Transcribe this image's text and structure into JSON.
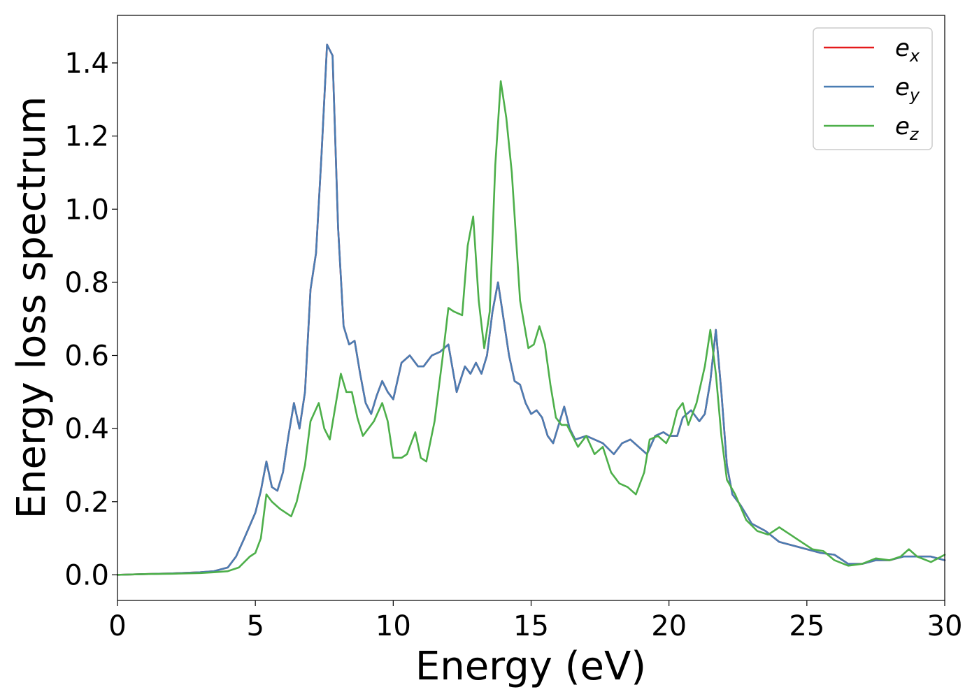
{
  "chart_data": {
    "type": "line",
    "xlabel": "Energy (eV)",
    "ylabel": "Energy loss spectrum",
    "xlim": [
      0,
      30
    ],
    "ylim": [
      -0.07,
      1.53
    ],
    "xticks": [
      0,
      5,
      10,
      15,
      20,
      25,
      30
    ],
    "xtick_labels": [
      "0",
      "5",
      "10",
      "15",
      "20",
      "25",
      "30"
    ],
    "yticks": [
      0.0,
      0.2,
      0.4,
      0.6,
      0.8,
      1.0,
      1.2,
      1.4
    ],
    "ytick_labels": [
      "0.0",
      "0.2",
      "0.4",
      "0.6",
      "0.8",
      "1.0",
      "1.2",
      "1.4"
    ],
    "grid": false,
    "legend_position": "top-right",
    "series": [
      {
        "name": "e_x",
        "legend_base": "e",
        "legend_sub": "x",
        "color": "#e41a1c",
        "x": [
          0,
          1,
          2,
          3,
          3.5,
          4,
          4.3,
          4.6,
          5.0,
          5.2,
          5.4,
          5.6,
          5.8,
          6.0,
          6.2,
          6.4,
          6.6,
          6.8,
          7.0,
          7.2,
          7.4,
          7.6,
          7.8,
          8.0,
          8.2,
          8.4,
          8.6,
          8.8,
          9.0,
          9.2,
          9.4,
          9.6,
          9.8,
          10.0,
          10.3,
          10.6,
          10.9,
          11.1,
          11.4,
          11.7,
          12.0,
          12.3,
          12.6,
          12.8,
          13.0,
          13.2,
          13.4,
          13.6,
          13.8,
          14.0,
          14.2,
          14.4,
          14.6,
          14.8,
          15.0,
          15.2,
          15.4,
          15.6,
          15.8,
          16.0,
          16.2,
          16.4,
          16.6,
          17.0,
          17.3,
          17.6,
          18.0,
          18.3,
          18.6,
          18.9,
          19.2,
          19.5,
          19.8,
          20.0,
          20.3,
          20.5,
          20.8,
          21.1,
          21.3,
          21.5,
          21.7,
          21.9,
          22.1,
          22.3,
          22.6,
          23.0,
          23.5,
          24.0,
          24.5,
          25.0,
          25.5,
          26.0,
          26.5,
          27.0,
          27.5,
          28.0,
          28.5,
          29.0,
          29.5,
          30
        ],
        "y": [
          0.0,
          0.002,
          0.004,
          0.007,
          0.01,
          0.02,
          0.05,
          0.1,
          0.17,
          0.23,
          0.31,
          0.24,
          0.23,
          0.28,
          0.38,
          0.47,
          0.4,
          0.5,
          0.78,
          0.88,
          1.15,
          1.45,
          1.42,
          0.95,
          0.68,
          0.63,
          0.64,
          0.55,
          0.47,
          0.44,
          0.49,
          0.53,
          0.5,
          0.48,
          0.58,
          0.6,
          0.57,
          0.57,
          0.6,
          0.61,
          0.63,
          0.5,
          0.57,
          0.55,
          0.58,
          0.55,
          0.6,
          0.72,
          0.8,
          0.7,
          0.6,
          0.53,
          0.52,
          0.47,
          0.44,
          0.45,
          0.43,
          0.38,
          0.36,
          0.41,
          0.46,
          0.4,
          0.37,
          0.38,
          0.37,
          0.36,
          0.33,
          0.36,
          0.37,
          0.35,
          0.33,
          0.38,
          0.39,
          0.38,
          0.38,
          0.43,
          0.45,
          0.42,
          0.44,
          0.53,
          0.67,
          0.5,
          0.3,
          0.22,
          0.19,
          0.14,
          0.12,
          0.09,
          0.08,
          0.07,
          0.06,
          0.055,
          0.03,
          0.03,
          0.04,
          0.04,
          0.05,
          0.05,
          0.05,
          0.04
        ]
      },
      {
        "name": "e_y",
        "legend_base": "e",
        "legend_sub": "y",
        "color": "#4a7db3",
        "x": [
          0,
          1,
          2,
          3,
          3.5,
          4,
          4.3,
          4.6,
          5.0,
          5.2,
          5.4,
          5.6,
          5.8,
          6.0,
          6.2,
          6.4,
          6.6,
          6.8,
          7.0,
          7.2,
          7.4,
          7.6,
          7.8,
          8.0,
          8.2,
          8.4,
          8.6,
          8.8,
          9.0,
          9.2,
          9.4,
          9.6,
          9.8,
          10.0,
          10.3,
          10.6,
          10.9,
          11.1,
          11.4,
          11.7,
          12.0,
          12.3,
          12.6,
          12.8,
          13.0,
          13.2,
          13.4,
          13.6,
          13.8,
          14.0,
          14.2,
          14.4,
          14.6,
          14.8,
          15.0,
          15.2,
          15.4,
          15.6,
          15.8,
          16.0,
          16.2,
          16.4,
          16.6,
          17.0,
          17.3,
          17.6,
          18.0,
          18.3,
          18.6,
          18.9,
          19.2,
          19.5,
          19.8,
          20.0,
          20.3,
          20.5,
          20.8,
          21.1,
          21.3,
          21.5,
          21.7,
          21.9,
          22.1,
          22.3,
          22.6,
          23.0,
          23.5,
          24.0,
          24.5,
          25.0,
          25.5,
          26.0,
          26.5,
          27.0,
          27.5,
          28.0,
          28.5,
          29.0,
          29.5,
          30
        ],
        "y": [
          0.0,
          0.002,
          0.004,
          0.007,
          0.01,
          0.02,
          0.05,
          0.1,
          0.17,
          0.23,
          0.31,
          0.24,
          0.23,
          0.28,
          0.38,
          0.47,
          0.4,
          0.5,
          0.78,
          0.88,
          1.15,
          1.45,
          1.42,
          0.95,
          0.68,
          0.63,
          0.64,
          0.55,
          0.47,
          0.44,
          0.49,
          0.53,
          0.5,
          0.48,
          0.58,
          0.6,
          0.57,
          0.57,
          0.6,
          0.61,
          0.63,
          0.5,
          0.57,
          0.55,
          0.58,
          0.55,
          0.6,
          0.72,
          0.8,
          0.7,
          0.6,
          0.53,
          0.52,
          0.47,
          0.44,
          0.45,
          0.43,
          0.38,
          0.36,
          0.41,
          0.46,
          0.4,
          0.37,
          0.38,
          0.37,
          0.36,
          0.33,
          0.36,
          0.37,
          0.35,
          0.33,
          0.38,
          0.39,
          0.38,
          0.38,
          0.43,
          0.45,
          0.42,
          0.44,
          0.53,
          0.67,
          0.5,
          0.3,
          0.22,
          0.19,
          0.14,
          0.12,
          0.09,
          0.08,
          0.07,
          0.06,
          0.055,
          0.03,
          0.03,
          0.04,
          0.04,
          0.05,
          0.05,
          0.05,
          0.04
        ]
      },
      {
        "name": "e_z",
        "legend_base": "e",
        "legend_sub": "z",
        "color": "#4daf4a",
        "x": [
          0,
          1,
          2,
          3,
          3.5,
          4,
          4.4,
          4.8,
          5.0,
          5.2,
          5.4,
          5.6,
          5.9,
          6.1,
          6.3,
          6.5,
          6.8,
          7.0,
          7.3,
          7.5,
          7.7,
          7.9,
          8.1,
          8.3,
          8.5,
          8.7,
          8.9,
          9.1,
          9.3,
          9.6,
          9.8,
          10.0,
          10.3,
          10.5,
          10.8,
          11.0,
          11.2,
          11.5,
          11.8,
          12.0,
          12.2,
          12.5,
          12.7,
          12.9,
          13.1,
          13.3,
          13.5,
          13.7,
          13.9,
          14.1,
          14.3,
          14.6,
          14.9,
          15.1,
          15.3,
          15.5,
          15.7,
          15.9,
          16.1,
          16.3,
          16.5,
          16.7,
          17.0,
          17.3,
          17.6,
          17.9,
          18.2,
          18.5,
          18.8,
          19.1,
          19.3,
          19.6,
          19.9,
          20.1,
          20.3,
          20.5,
          20.7,
          21.0,
          21.3,
          21.5,
          21.7,
          21.9,
          22.1,
          22.4,
          22.8,
          23.2,
          23.6,
          24.0,
          24.4,
          24.8,
          25.2,
          25.6,
          26.0,
          26.5,
          27.0,
          27.5,
          28.0,
          28.4,
          28.7,
          29.0,
          29.5,
          30
        ],
        "y": [
          0.0,
          0.002,
          0.003,
          0.005,
          0.007,
          0.01,
          0.02,
          0.05,
          0.06,
          0.1,
          0.22,
          0.2,
          0.18,
          0.17,
          0.16,
          0.2,
          0.3,
          0.42,
          0.47,
          0.4,
          0.37,
          0.46,
          0.55,
          0.5,
          0.5,
          0.43,
          0.38,
          0.4,
          0.42,
          0.47,
          0.42,
          0.32,
          0.32,
          0.33,
          0.39,
          0.32,
          0.31,
          0.42,
          0.6,
          0.73,
          0.72,
          0.71,
          0.9,
          0.98,
          0.75,
          0.62,
          0.72,
          1.12,
          1.35,
          1.25,
          1.1,
          0.75,
          0.62,
          0.63,
          0.68,
          0.63,
          0.52,
          0.43,
          0.41,
          0.41,
          0.38,
          0.35,
          0.38,
          0.33,
          0.35,
          0.28,
          0.25,
          0.24,
          0.22,
          0.28,
          0.37,
          0.38,
          0.36,
          0.39,
          0.45,
          0.47,
          0.41,
          0.47,
          0.57,
          0.67,
          0.55,
          0.38,
          0.26,
          0.22,
          0.15,
          0.12,
          0.11,
          0.13,
          0.11,
          0.09,
          0.07,
          0.065,
          0.04,
          0.025,
          0.03,
          0.045,
          0.04,
          0.05,
          0.07,
          0.05,
          0.035,
          0.055
        ]
      }
    ]
  }
}
